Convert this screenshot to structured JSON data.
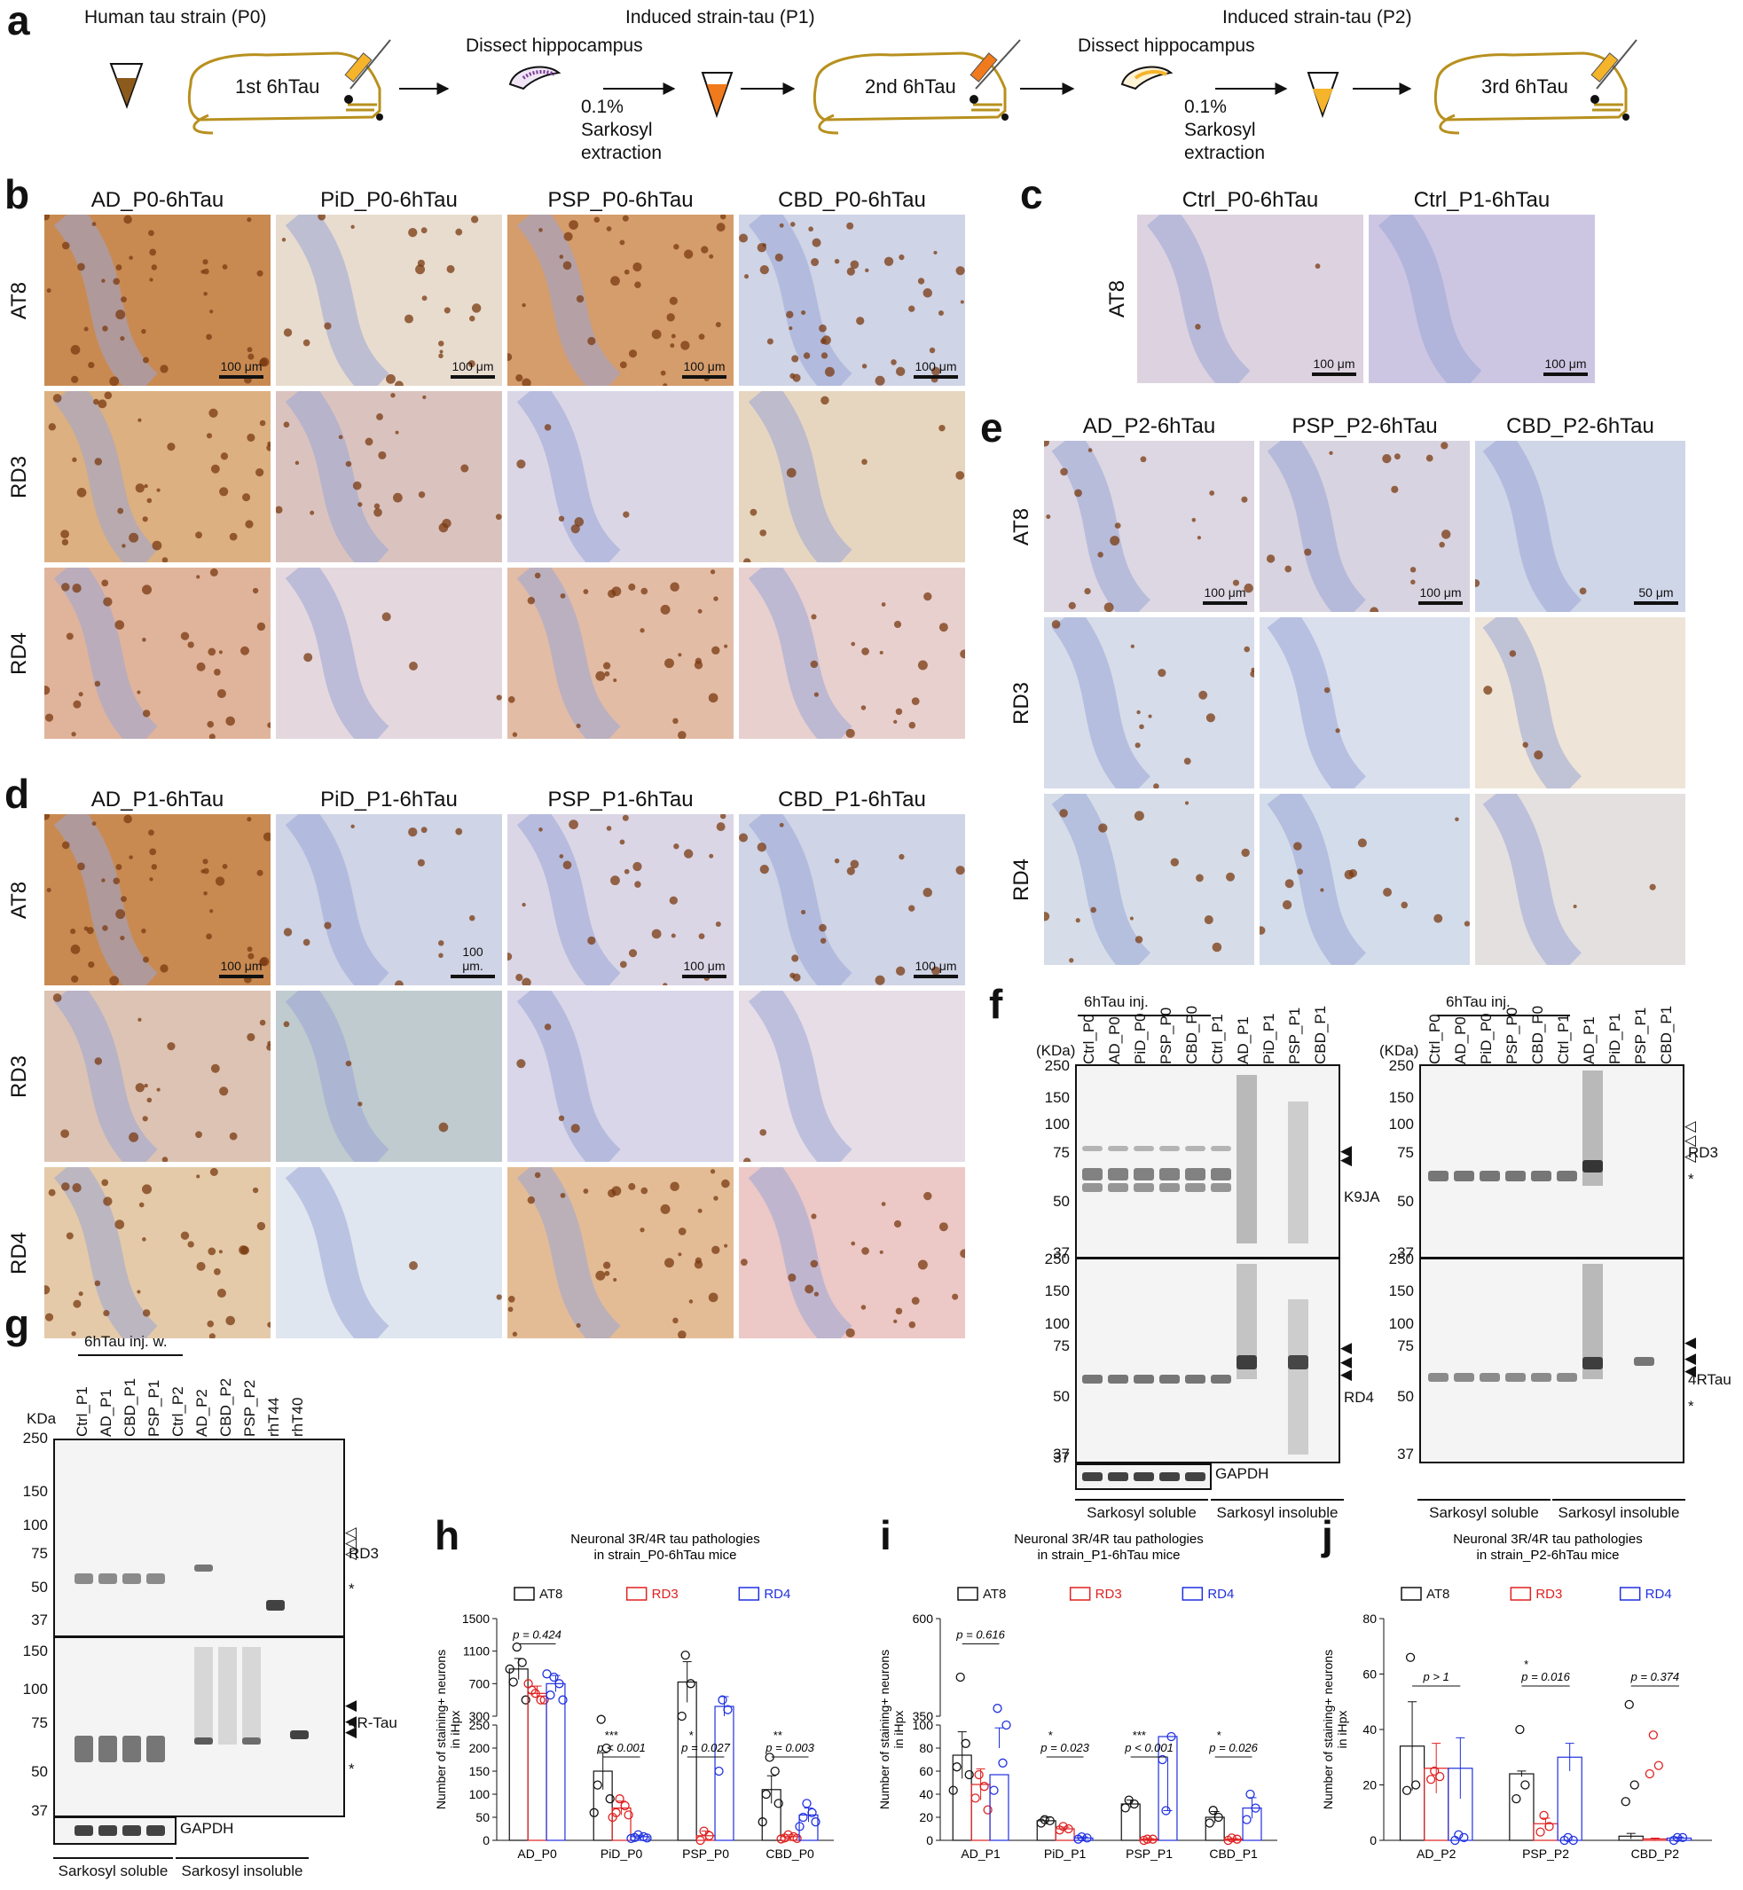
{
  "panel_a": {
    "label": "a",
    "p0_label": "Human tau strain (P0)",
    "p1_label": "Induced strain-tau (P1)",
    "p2_label": "Induced strain-tau (P2)",
    "dissect1": "Dissect hippocampus",
    "dissect2": "Dissect hippocampus",
    "extract1": "0.1% Sarkosyl extraction",
    "extract2": "0.1% Sarkosyl extraction",
    "mouse1": "1st 6hTau",
    "mouse2": "2nd 6hTau",
    "mouse3": "3rd 6hTau",
    "colors": {
      "brain": "#b8901e",
      "tube1": "#8b5a1c",
      "tube2": "#f07a1c",
      "tube3": "#f5b42a",
      "lobe": "#7a3a9a"
    }
  },
  "panel_b": {
    "label": "b",
    "columns": [
      "AD_P0-6hTau",
      "PiD_P0-6hTau",
      "PSP_P0-6hTau",
      "CBD_P0-6hTau"
    ],
    "rows": [
      "AT8",
      "RD3",
      "RD4"
    ],
    "scale": "100 μm"
  },
  "panel_c": {
    "label": "c",
    "columns": [
      "Ctrl_P0-6hTau",
      "Ctrl_P1-6hTau"
    ],
    "rows": [
      "AT8"
    ],
    "scale": "100 μm"
  },
  "panel_d": {
    "label": "d",
    "columns": [
      "AD_P1-6hTau",
      "PiD_P1-6hTau",
      "PSP_P1-6hTau",
      "CBD_P1-6hTau"
    ],
    "rows": [
      "AT8",
      "RD3",
      "RD4"
    ],
    "scale": "100 μm",
    "scale_alt": "100 μm."
  },
  "panel_e": {
    "label": "e",
    "columns": [
      "AD_P2-6hTau",
      "PSP_P2-6hTau",
      "CBD_P2-6hTau"
    ],
    "rows": [
      "AT8",
      "RD3",
      "RD4"
    ],
    "scale": "100 μm",
    "scale_cbd": "50 μm"
  },
  "panel_f": {
    "label": "f",
    "inj": "6hTau inj.",
    "kda": "(KDa)",
    "lanes": [
      "Ctrl_P0",
      "AD_P0",
      "PiD_P0",
      "PSP_P0",
      "CBD_P0",
      "Ctrl_P1",
      "AD_P1",
      "PiD_P1",
      "PSP_P1",
      "CBD_P1"
    ],
    "markers_top": [
      "250",
      "150",
      "100",
      "75",
      "50",
      "37"
    ],
    "markers_bottom": [
      "250",
      "150",
      "100",
      "75",
      "50",
      "37"
    ],
    "marker_gapdh": "37",
    "left_top_ab": "K9JA",
    "left_bottom_ab": "RD4",
    "right_top_ab": "RD3",
    "right_bottom_ab": "4RTau",
    "gapdh": "GAPDH",
    "soluble": "Sarkosyl soluble",
    "insoluble": "Sarkosyl insoluble",
    "asterisk": "*"
  },
  "panel_g": {
    "label": "g",
    "inj": "6hTau inj. w.",
    "kda": "KDa",
    "lanes": [
      "Ctrl_P1",
      "AD_P1",
      "CBD_P1",
      "PSP_P1",
      "Ctrl_P2",
      "AD_P2",
      "CBD_P2",
      "PSP_P2",
      "rhT44",
      "rhT40"
    ],
    "markers_top": [
      "250",
      "150",
      "100",
      "75",
      "50",
      "37"
    ],
    "markers_bottom": [
      "150",
      "100",
      "75",
      "50"
    ],
    "marker_gapdh": "37",
    "top_ab": "RD3",
    "bottom_ab": "4R-Tau",
    "gapdh": "GAPDH",
    "soluble": "Sarkosyl soluble",
    "insoluble": "Sarkosyl insoluble",
    "asterisk": "*"
  },
  "chart_data": [
    {
      "panel": "h",
      "type": "bar",
      "title": "Neuronal 3R/4R tau pathologies in strain_P0-6hTau mice",
      "ylabel": "Number of staining+ neurons in iHpx",
      "categories": [
        "AD_P0",
        "PiD_P0",
        "PSP_P0",
        "CBD_P0"
      ],
      "series": [
        {
          "name": "AT8",
          "color": "#111111",
          "values": [
            880,
            150,
            720,
            110
          ],
          "errors": [
            130,
            40,
            250,
            30
          ]
        },
        {
          "name": "RD3",
          "color": "#e02020",
          "values": [
            580,
            70,
            10,
            8
          ],
          "errors": [
            90,
            15,
            10,
            4
          ]
        },
        {
          "name": "RD4",
          "color": "#2030e0",
          "values": [
            700,
            8,
            420,
            55
          ],
          "errors": [
            100,
            3,
            120,
            15
          ]
        }
      ],
      "points": [
        [
          [
            1150,
            960,
            720,
            500,
            880
          ],
          [
            580,
            500,
            620,
            500,
            700
          ],
          [
            780,
            700,
            560,
            500,
            820
          ]
        ],
        [
          [
            260,
            200,
            120,
            90,
            60
          ],
          [
            90,
            75,
            60,
            55,
            50
          ],
          [
            12,
            8,
            6,
            5,
            4
          ]
        ],
        [
          [
            1050,
            700,
            300
          ],
          [
            20,
            10,
            0
          ],
          [
            500,
            380,
            150
          ]
        ],
        [
          [
            180,
            150,
            100,
            80,
            40
          ],
          [
            12,
            8,
            5,
            4,
            3
          ],
          [
            80,
            60,
            50,
            40,
            30
          ]
        ]
      ],
      "ylim": [
        0,
        1500
      ],
      "yticks_lower": [
        "0",
        "50",
        "100",
        "150",
        "200",
        "250"
      ],
      "yticks_upper": [
        "300",
        "700",
        "1100",
        "1500"
      ],
      "pvalues": [
        {
          "text": "p = 0.424",
          "stars": ""
        },
        {
          "text": "p < 0.001",
          "stars": "***"
        },
        {
          "text": "p = 0.027",
          "stars": "*"
        },
        {
          "text": "p = 0.003",
          "stars": "**"
        }
      ]
    },
    {
      "panel": "i",
      "type": "bar",
      "title": "Neuronal 3R/4R tau pathologies in strain_P1-6hTau mice",
      "ylabel": "Number of staining+ neurons in iHpx",
      "categories": [
        "AD_P1",
        "PiD_P1",
        "PSP_P1",
        "CBD_P1"
      ],
      "series": [
        {
          "name": "AT8",
          "color": "#111111",
          "values": [
            250,
            17,
            125,
            20
          ],
          "errors": [
            60,
            3,
            10,
            5
          ]
        },
        {
          "name": "RD3",
          "color": "#e02020",
          "values": [
            175,
            10,
            1,
            1
          ],
          "errors": [
            40,
            1.5,
            0.5,
            0.5
          ]
        },
        {
          "name": "RD4",
          "color": "#2030e0",
          "values": [
            200,
            2,
            90,
            28
          ],
          "errors": [
            120,
            1,
            18,
            9
          ]
        }
      ],
      "points": [
        [
          [
            450,
            280,
            220,
            200,
            160
          ],
          [
            200,
            170,
            140,
            110
          ],
          [
            370,
            230,
            160,
            100
          ]
        ],
        [
          [
            18,
            17,
            15
          ],
          [
            12,
            10,
            9
          ],
          [
            3,
            2,
            1
          ]
        ],
        [
          [
            135,
            125,
            115
          ],
          [
            1,
            1,
            0
          ],
          [
            108,
            90,
            70
          ]
        ],
        [
          [
            26,
            20,
            15
          ],
          [
            2,
            1,
            0
          ],
          [
            40,
            28,
            18
          ]
        ]
      ],
      "ylim": [
        0,
        600
      ],
      "yticks_lower": [
        "0",
        "20",
        "40",
        "60",
        "80",
        "100"
      ],
      "yticks_upper": [
        "350",
        "600"
      ],
      "pvalues": [
        {
          "text": "p = 0.616",
          "stars": ""
        },
        {
          "text": "p = 0.023",
          "stars": "*"
        },
        {
          "text": "p < 0.001",
          "stars": "***"
        },
        {
          "text": "p = 0.026",
          "stars": "*"
        }
      ]
    },
    {
      "panel": "j",
      "type": "bar",
      "title": "Neuronal 3R/4R tau pathologies in strain_P2-6hTau mice",
      "ylabel": "Number of staining+ neurons in iHpx",
      "categories": [
        "AD_P2",
        "PSP_P2",
        "CBD_P2"
      ],
      "series": [
        {
          "name": "AT8",
          "color": "#111111",
          "values": [
            34,
            24,
            1.5
          ],
          "errors": [
            16,
            1,
            1
          ]
        },
        {
          "name": "RD3",
          "color": "#e02020",
          "values": [
            26,
            6,
            0.5
          ],
          "errors": [
            9,
            2,
            0.3
          ]
        },
        {
          "name": "RD4",
          "color": "#2030e0",
          "values": [
            26,
            30,
            0.8
          ],
          "errors": [
            11,
            5,
            0.4
          ]
        }
      ],
      "points": [
        [
          [
            66,
            20,
            18
          ],
          [
            25,
            23,
            22
          ],
          [
            2,
            1,
            0
          ]
        ],
        [
          [
            40,
            20,
            15
          ],
          [
            9,
            5,
            3
          ],
          [
            1,
            0,
            0
          ]
        ],
        [
          [
            49,
            20,
            14
          ],
          [
            38,
            27,
            24
          ],
          [
            1,
            1,
            0
          ]
        ]
      ],
      "ylim": [
        0,
        80
      ],
      "yticks": [
        "0",
        "20",
        "40",
        "60",
        "80"
      ],
      "pvalues": [
        {
          "text": "p > 1",
          "stars": ""
        },
        {
          "text": "p = 0.016",
          "stars": "*"
        },
        {
          "text": "p = 0.374",
          "stars": ""
        }
      ]
    }
  ]
}
